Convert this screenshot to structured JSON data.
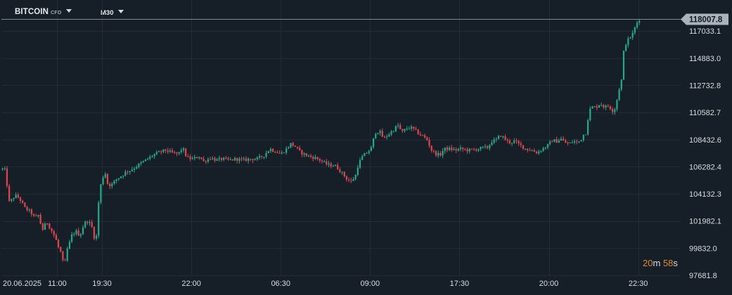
{
  "toolbar": {
    "symbol": "BITCOIN",
    "symbol_tag": "CFD",
    "timeframe": "M30"
  },
  "countdown": {
    "minutes": "20",
    "minutes_unit": "m",
    "seconds": "58",
    "seconds_unit": "s"
  },
  "colors": {
    "background": "#161f27",
    "up": "#26a88a",
    "down": "#e0454f",
    "grid": "#222c35",
    "price_line": "#7d8a95",
    "countdown": "#e4892b"
  },
  "chart_data": {
    "type": "candlestick",
    "current_price": "118007.8",
    "y_ticks": [
      "117033.1",
      "114883.0",
      "112732.8",
      "110582.7",
      "108432.6",
      "106282.4",
      "104132.3",
      "101982.1",
      "99832.0",
      "97681.8"
    ],
    "y_tick_values": [
      117033.1,
      114883.0,
      112732.8,
      110582.7,
      108432.6,
      106282.4,
      104132.3,
      101982.1,
      99832.0,
      97681.8
    ],
    "x_ticks": [
      "20.06.2025",
      "11:00",
      "19:30",
      "22:00",
      "06:30",
      "09:00",
      "17:30",
      "20:00",
      "22:30"
    ],
    "x_tick_index": [
      0,
      25,
      45,
      85,
      125,
      165,
      205,
      245,
      285
    ],
    "ylim": [
      97681.8,
      118600
    ],
    "grid": true,
    "path": [
      [
        0,
        106100
      ],
      [
        4,
        106000
      ],
      [
        6,
        105000
      ],
      [
        10,
        103300
      ],
      [
        14,
        103800
      ],
      [
        20,
        104000
      ],
      [
        26,
        103600
      ],
      [
        32,
        103000
      ],
      [
        40,
        102700
      ],
      [
        46,
        102200
      ],
      [
        52,
        102500
      ],
      [
        54,
        101800
      ],
      [
        58,
        101200
      ],
      [
        62,
        102000
      ],
      [
        66,
        101600
      ],
      [
        72,
        101000
      ],
      [
        76,
        100500
      ],
      [
        80,
        99800
      ],
      [
        84,
        99400
      ],
      [
        88,
        98000
      ],
      [
        90,
        99500
      ],
      [
        94,
        100000
      ],
      [
        98,
        100800
      ],
      [
        104,
        101200
      ],
      [
        110,
        100800
      ],
      [
        116,
        101800
      ],
      [
        122,
        102000
      ],
      [
        128,
        101400
      ],
      [
        132,
        100200
      ],
      [
        134,
        101000
      ],
      [
        136,
        103000
      ],
      [
        138,
        104400
      ],
      [
        142,
        105400
      ],
      [
        146,
        105800
      ],
      [
        150,
        104800
      ],
      [
        156,
        104900
      ],
      [
        162,
        105300
      ],
      [
        170,
        105600
      ],
      [
        176,
        105900
      ],
      [
        182,
        106000
      ],
      [
        190,
        106300
      ],
      [
        198,
        106600
      ],
      [
        206,
        106900
      ],
      [
        214,
        107200
      ],
      [
        222,
        107400
      ],
      [
        232,
        107600
      ],
      [
        240,
        107400
      ],
      [
        250,
        107300
      ],
      [
        256,
        107800
      ],
      [
        262,
        107000
      ],
      [
        270,
        106900
      ],
      [
        280,
        107100
      ],
      [
        286,
        106700
      ],
      [
        296,
        107000
      ],
      [
        304,
        106800
      ],
      [
        312,
        106900
      ],
      [
        322,
        106800
      ],
      [
        332,
        106900
      ],
      [
        342,
        106800
      ],
      [
        352,
        106900
      ],
      [
        362,
        106900
      ],
      [
        372,
        107200
      ],
      [
        380,
        107700
      ],
      [
        388,
        107500
      ],
      [
        396,
        107300
      ],
      [
        404,
        107700
      ],
      [
        410,
        108100
      ],
      [
        416,
        107900
      ],
      [
        422,
        107500
      ],
      [
        428,
        107300
      ],
      [
        436,
        107100
      ],
      [
        444,
        107000
      ],
      [
        452,
        106800
      ],
      [
        460,
        106500
      ],
      [
        466,
        106400
      ],
      [
        472,
        106400
      ],
      [
        478,
        106100
      ],
      [
        484,
        105700
      ],
      [
        490,
        105300
      ],
      [
        496,
        105100
      ],
      [
        502,
        105600
      ],
      [
        506,
        106500
      ],
      [
        512,
        107100
      ],
      [
        518,
        107400
      ],
      [
        524,
        107700
      ],
      [
        530,
        109000
      ],
      [
        536,
        109100
      ],
      [
        542,
        108500
      ],
      [
        548,
        108800
      ],
      [
        556,
        109200
      ],
      [
        562,
        109600
      ],
      [
        568,
        109000
      ],
      [
        574,
        109300
      ],
      [
        580,
        109400
      ],
      [
        586,
        109200
      ],
      [
        592,
        108900
      ],
      [
        598,
        108700
      ],
      [
        604,
        108400
      ],
      [
        610,
        107600
      ],
      [
        616,
        107300
      ],
      [
        622,
        107200
      ],
      [
        628,
        107700
      ],
      [
        636,
        107700
      ],
      [
        644,
        107600
      ],
      [
        652,
        107700
      ],
      [
        660,
        107600
      ],
      [
        668,
        107600
      ],
      [
        676,
        107700
      ],
      [
        684,
        107800
      ],
      [
        690,
        107800
      ],
      [
        696,
        108300
      ],
      [
        702,
        108400
      ],
      [
        708,
        108800
      ],
      [
        714,
        108500
      ],
      [
        720,
        108200
      ],
      [
        728,
        108300
      ],
      [
        736,
        108000
      ],
      [
        744,
        107700
      ],
      [
        752,
        107600
      ],
      [
        760,
        107400
      ],
      [
        768,
        107700
      ],
      [
        776,
        108000
      ],
      [
        782,
        108400
      ],
      [
        788,
        108300
      ],
      [
        794,
        108500
      ],
      [
        800,
        108200
      ],
      [
        806,
        108100
      ],
      [
        812,
        108300
      ],
      [
        818,
        108200
      ],
      [
        822,
        108400
      ],
      [
        826,
        108800
      ],
      [
        830,
        109000
      ],
      [
        834,
        110700
      ],
      [
        838,
        111000
      ],
      [
        844,
        111000
      ],
      [
        850,
        111300
      ],
      [
        856,
        111000
      ],
      [
        862,
        111100
      ],
      [
        868,
        110700
      ],
      [
        872,
        111000
      ],
      [
        876,
        112300
      ],
      [
        880,
        113000
      ],
      [
        884,
        115800
      ],
      [
        888,
        116200
      ],
      [
        892,
        116500
      ],
      [
        896,
        116800
      ],
      [
        900,
        117400
      ],
      [
        904,
        117900
      ],
      [
        908,
        118007.8
      ]
    ]
  }
}
